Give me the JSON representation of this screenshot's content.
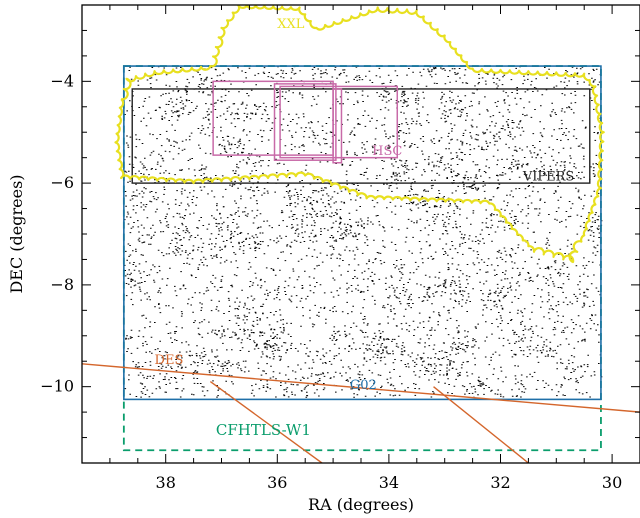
{
  "chart_data": {
    "type": "scatter",
    "xlabel": "RA (degrees)",
    "ylabel": "DEC (degrees)",
    "xlim": [
      39.5,
      29.5
    ],
    "ylim": [
      -11.5,
      -2.5
    ],
    "x_ticks": [
      38,
      36,
      34,
      32,
      30
    ],
    "x_tick_labels": [
      "38",
      "36",
      "34",
      "32",
      "30"
    ],
    "y_ticks": [
      -4,
      -6,
      -8,
      -10
    ],
    "y_tick_labels": [
      "−4",
      "−6",
      "−8",
      "−10"
    ],
    "grid": false,
    "points_region": {
      "ra": [
        38.75,
        30.2
      ],
      "dec": [
        -3.7,
        -10.2
      ]
    },
    "overlays": [
      {
        "name": "XXL",
        "color": "#e8e020",
        "style": "solid",
        "label_pos": [
          36.0,
          -2.95
        ]
      },
      {
        "name": "G02",
        "color": "#1f6fa8",
        "style": "solid",
        "ra": [
          38.75,
          30.2
        ],
        "dec": [
          -3.7,
          -10.25
        ],
        "label_pos": [
          34.7,
          -10.05
        ]
      },
      {
        "name": "CFHTLS-W1",
        "color": "#0a9d6c",
        "style": "dashed",
        "ra": [
          38.75,
          30.2
        ],
        "dec": [
          -3.7,
          -11.25
        ],
        "label_pos": [
          37.1,
          -10.95
        ]
      },
      {
        "name": "VIPERS",
        "color": "#222222",
        "style": "solid",
        "ra": [
          38.6,
          30.4
        ],
        "dec": [
          -4.15,
          -6.0
        ],
        "label_pos": [
          31.6,
          -5.95
        ]
      },
      {
        "name": "HSC",
        "color": "#c86aa8",
        "style": "solid",
        "label_pos": [
          34.3,
          -5.45
        ]
      },
      {
        "name": "DES",
        "color": "#d4662c",
        "style": "solid",
        "label_pos": [
          38.2,
          -9.55
        ]
      }
    ],
    "hsc_rects": [
      {
        "ra": [
          37.15,
          35.0
        ],
        "dec": [
          -4.0,
          -5.45
        ]
      },
      {
        "ra": [
          36.05,
          34.95
        ],
        "dec": [
          -4.05,
          -5.55
        ]
      },
      {
        "ra": [
          35.95,
          33.85
        ],
        "dec": [
          -4.1,
          -5.5
        ]
      },
      {
        "ra": [
          35.0,
          34.85
        ],
        "dec": [
          -4.15,
          -5.6
        ]
      }
    ],
    "des_lines": [
      {
        "ra": [
          39.5,
          29.5
        ],
        "dec": [
          -9.55,
          -10.5
        ]
      },
      {
        "ra": [
          37.2,
          35.2
        ],
        "dec": [
          -9.9,
          -11.5
        ]
      },
      {
        "ra": [
          33.2,
          31.5
        ],
        "dec": [
          -10.0,
          -11.5
        ]
      }
    ],
    "xxl_boundary": [
      [
        38.8,
        -4.35
      ],
      [
        38.9,
        -5.2
      ],
      [
        38.8,
        -5.9
      ],
      [
        37.5,
        -6.0
      ],
      [
        35.5,
        -5.85
      ],
      [
        34.4,
        -6.3
      ],
      [
        32.2,
        -6.4
      ],
      [
        31.8,
        -6.9
      ],
      [
        31.4,
        -7.35
      ],
      [
        30.7,
        -7.55
      ],
      [
        30.55,
        -7.15
      ],
      [
        30.45,
        -6.9
      ],
      [
        30.2,
        -6.1
      ],
      [
        30.15,
        -5.0
      ],
      [
        30.3,
        -4.1
      ],
      [
        30.5,
        -3.85
      ],
      [
        32.5,
        -3.75
      ],
      [
        33.0,
        -3.1
      ],
      [
        33.5,
        -2.6
      ],
      [
        34.2,
        -2.55
      ],
      [
        35.3,
        -2.95
      ],
      [
        35.6,
        -2.55
      ],
      [
        36.7,
        -2.5
      ],
      [
        37.0,
        -2.95
      ],
      [
        37.2,
        -3.7
      ],
      [
        38.2,
        -3.8
      ],
      [
        38.7,
        -3.95
      ],
      [
        38.8,
        -4.35
      ]
    ]
  }
}
